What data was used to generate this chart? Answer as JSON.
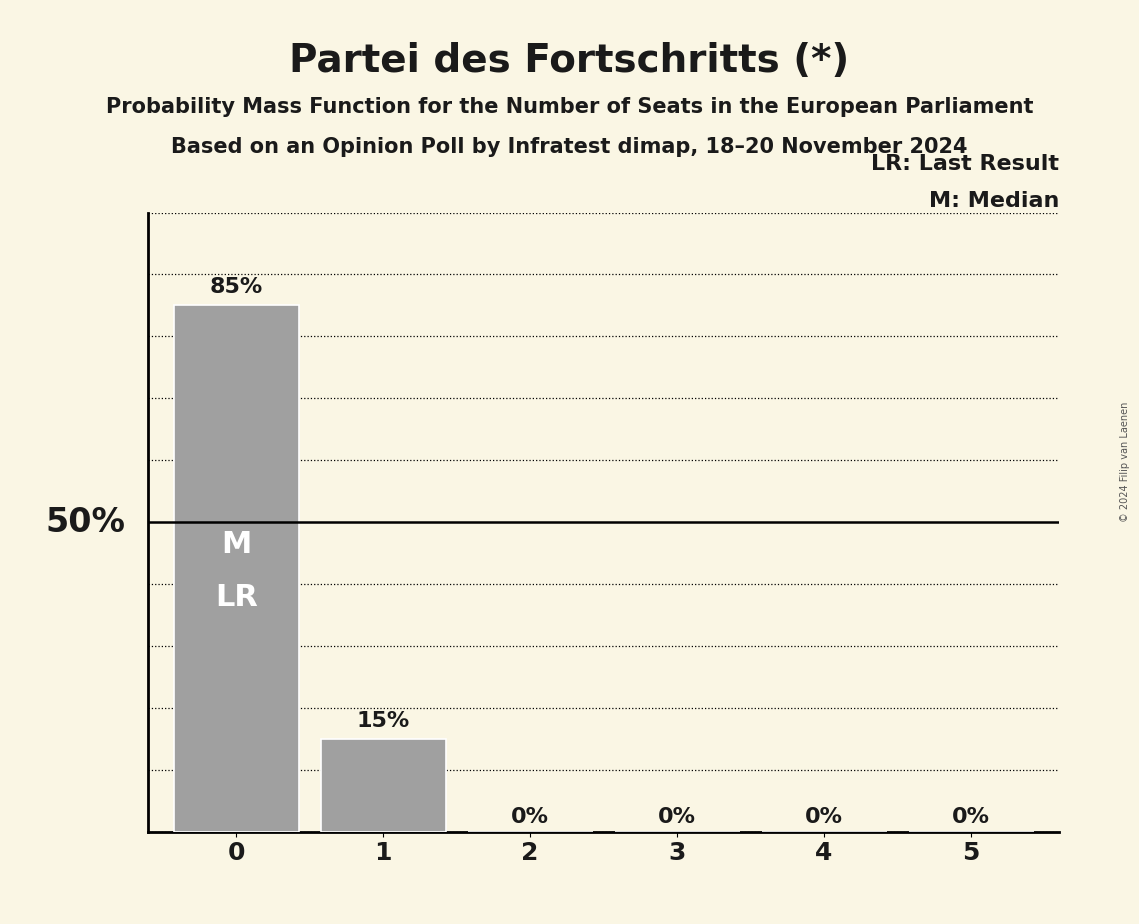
{
  "title": "Partei des Fortschritts (*)",
  "subtitle1": "Probability Mass Function for the Number of Seats in the European Parliament",
  "subtitle2": "Based on an Opinion Poll by Infratest dimap, 18–20 November 2024",
  "x_values": [
    0,
    1,
    2,
    3,
    4,
    5
  ],
  "y_values": [
    0.85,
    0.15,
    0.0,
    0.0,
    0.0,
    0.0
  ],
  "bar_color": "#a0a0a0",
  "bar_edge_color": "#ffffff",
  "background_color": "#faf6e4",
  "ylabel_50": "50%",
  "bar_labels": [
    "85%",
    "15%",
    "0%",
    "0%",
    "0%",
    "0%"
  ],
  "median": 0,
  "last_result": 0,
  "median_label": "M",
  "lr_label": "LR",
  "legend_lr": "LR: Last Result",
  "legend_m": "M: Median",
  "copyright": "© 2024 Filip van Laenen",
  "title_fontsize": 28,
  "subtitle_fontsize": 15,
  "axis_tick_fontsize": 18,
  "bar_label_fontsize": 16,
  "legend_fontsize": 16,
  "ylabel_fontsize": 24,
  "ml_label_fontsize": 22,
  "yticks": [
    0.0,
    0.1,
    0.2,
    0.3,
    0.4,
    0.5,
    0.6,
    0.7,
    0.8,
    0.9,
    1.0
  ],
  "ylim": [
    0,
    1.0
  ],
  "text_color": "#1a1a1a"
}
